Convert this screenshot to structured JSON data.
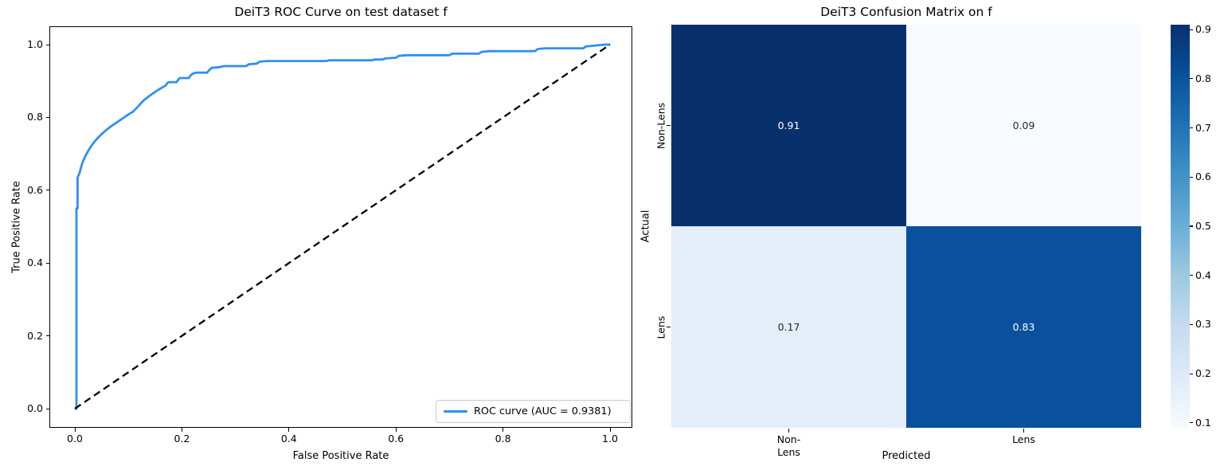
{
  "figure": {
    "background": "#ffffff"
  },
  "roc_plot": {
    "title": "DeiT3 ROC Curve on test dataset f",
    "xlabel": "False Positive Rate",
    "ylabel": "True Positive Rate",
    "x_tick_labels": [
      "0.0",
      "0.2",
      "0.4",
      "0.6",
      "0.8",
      "1.0"
    ],
    "y_tick_labels": [
      "0.0",
      "0.2",
      "0.4",
      "0.6",
      "0.8",
      "1.0"
    ],
    "legend_label": "ROC curve (AUC = 0.9381)",
    "auc": 0.9381,
    "curve_color": "#3090ec",
    "diagonal_color": "#000000"
  },
  "confusion_matrix": {
    "title": "DeiT3 Confusion Matrix on f",
    "xlabel": "Predicted",
    "ylabel": "Actual",
    "x_tick_labels": [
      "Non-Lens",
      "Lens"
    ],
    "y_tick_labels": [
      "Non-Lens",
      "Lens"
    ],
    "colorbar_tick_labels": [
      "0.9",
      "0.8",
      "0.7",
      "0.6",
      "0.5",
      "0.4",
      "0.3",
      "0.2",
      "0.1"
    ],
    "colorbar_range": [
      0.09,
      0.91
    ],
    "colormap": "Blues"
  },
  "chart_data": [
    {
      "type": "line",
      "title": "DeiT3 ROC Curve on test dataset f",
      "xlabel": "False Positive Rate",
      "ylabel": "True Positive Rate",
      "xlim": [
        -0.05,
        1.05
      ],
      "ylim": [
        -0.05,
        1.05
      ],
      "grid": false,
      "legend_position": "lower right",
      "series": [
        {
          "name": "ROC curve (AUC = 0.9381)",
          "style": "solid",
          "color": "#3090ec",
          "points": [
            [
              0.0,
              0.0
            ],
            [
              0.003,
              0.0
            ],
            [
              0.003,
              0.55
            ],
            [
              0.005,
              0.55
            ],
            [
              0.005,
              0.635
            ],
            [
              0.009,
              0.648
            ],
            [
              0.011,
              0.66
            ],
            [
              0.013,
              0.67
            ],
            [
              0.016,
              0.682
            ],
            [
              0.019,
              0.692
            ],
            [
              0.023,
              0.703
            ],
            [
              0.027,
              0.713
            ],
            [
              0.031,
              0.722
            ],
            [
              0.036,
              0.732
            ],
            [
              0.041,
              0.741
            ],
            [
              0.047,
              0.75
            ],
            [
              0.053,
              0.758
            ],
            [
              0.06,
              0.767
            ],
            [
              0.068,
              0.776
            ],
            [
              0.076,
              0.784
            ],
            [
              0.084,
              0.792
            ],
            [
              0.092,
              0.8
            ],
            [
              0.1,
              0.808
            ],
            [
              0.108,
              0.815
            ],
            [
              0.113,
              0.822
            ],
            [
              0.118,
              0.83
            ],
            [
              0.123,
              0.838
            ],
            [
              0.128,
              0.846
            ],
            [
              0.134,
              0.853
            ],
            [
              0.14,
              0.86
            ],
            [
              0.148,
              0.868
            ],
            [
              0.155,
              0.875
            ],
            [
              0.163,
              0.882
            ],
            [
              0.17,
              0.888
            ],
            [
              0.173,
              0.895
            ],
            [
              0.176,
              0.897
            ],
            [
              0.19,
              0.897
            ],
            [
              0.193,
              0.903
            ],
            [
              0.196,
              0.908
            ],
            [
              0.213,
              0.908
            ],
            [
              0.216,
              0.915
            ],
            [
              0.22,
              0.92
            ],
            [
              0.226,
              0.923
            ],
            [
              0.247,
              0.923
            ],
            [
              0.251,
              0.93
            ],
            [
              0.256,
              0.936
            ],
            [
              0.27,
              0.938
            ],
            [
              0.278,
              0.941
            ],
            [
              0.32,
              0.941
            ],
            [
              0.325,
              0.946
            ],
            [
              0.34,
              0.948
            ],
            [
              0.345,
              0.953
            ],
            [
              0.358,
              0.955
            ],
            [
              0.47,
              0.955
            ],
            [
              0.475,
              0.957
            ],
            [
              0.555,
              0.957
            ],
            [
              0.56,
              0.959
            ],
            [
              0.575,
              0.959
            ],
            [
              0.58,
              0.962
            ],
            [
              0.6,
              0.964
            ],
            [
              0.605,
              0.969
            ],
            [
              0.62,
              0.971
            ],
            [
              0.7,
              0.971
            ],
            [
              0.705,
              0.975
            ],
            [
              0.755,
              0.975
            ],
            [
              0.76,
              0.98
            ],
            [
              0.775,
              0.982
            ],
            [
              0.86,
              0.982
            ],
            [
              0.865,
              0.988
            ],
            [
              0.88,
              0.99
            ],
            [
              0.95,
              0.99
            ],
            [
              0.955,
              0.995
            ],
            [
              0.97,
              0.997
            ],
            [
              0.99,
              1.0
            ],
            [
              1.0,
              1.0
            ]
          ]
        },
        {
          "name": "chance-diagonal",
          "style": "dashed",
          "color": "#000000",
          "points": [
            [
              0.0,
              0.0
            ],
            [
              1.0,
              1.0
            ]
          ]
        }
      ]
    },
    {
      "type": "heatmap",
      "title": "DeiT3 Confusion Matrix on f",
      "xlabel": "Predicted",
      "ylabel": "Actual",
      "x_categories": [
        "Non-Lens",
        "Lens"
      ],
      "y_categories": [
        "Non-Lens",
        "Lens"
      ],
      "values": [
        [
          0.91,
          0.09
        ],
        [
          0.17,
          0.83
        ]
      ],
      "value_labels": [
        [
          "0.91",
          "0.09"
        ],
        [
          "0.17",
          "0.83"
        ]
      ],
      "cell_colors": [
        [
          "#08306b",
          "#f7fbff"
        ],
        [
          "#e3eef9",
          "#09509d"
        ]
      ],
      "cell_text_colors": [
        [
          "#ffffff",
          "#262626"
        ],
        [
          "#262626",
          "#ffffff"
        ]
      ],
      "colormap": "Blues",
      "colorbar_range": [
        0.09,
        0.91
      ],
      "colorbar_ticks": [
        0.9,
        0.8,
        0.7,
        0.6,
        0.5,
        0.4,
        0.3,
        0.2,
        0.1
      ]
    }
  ]
}
